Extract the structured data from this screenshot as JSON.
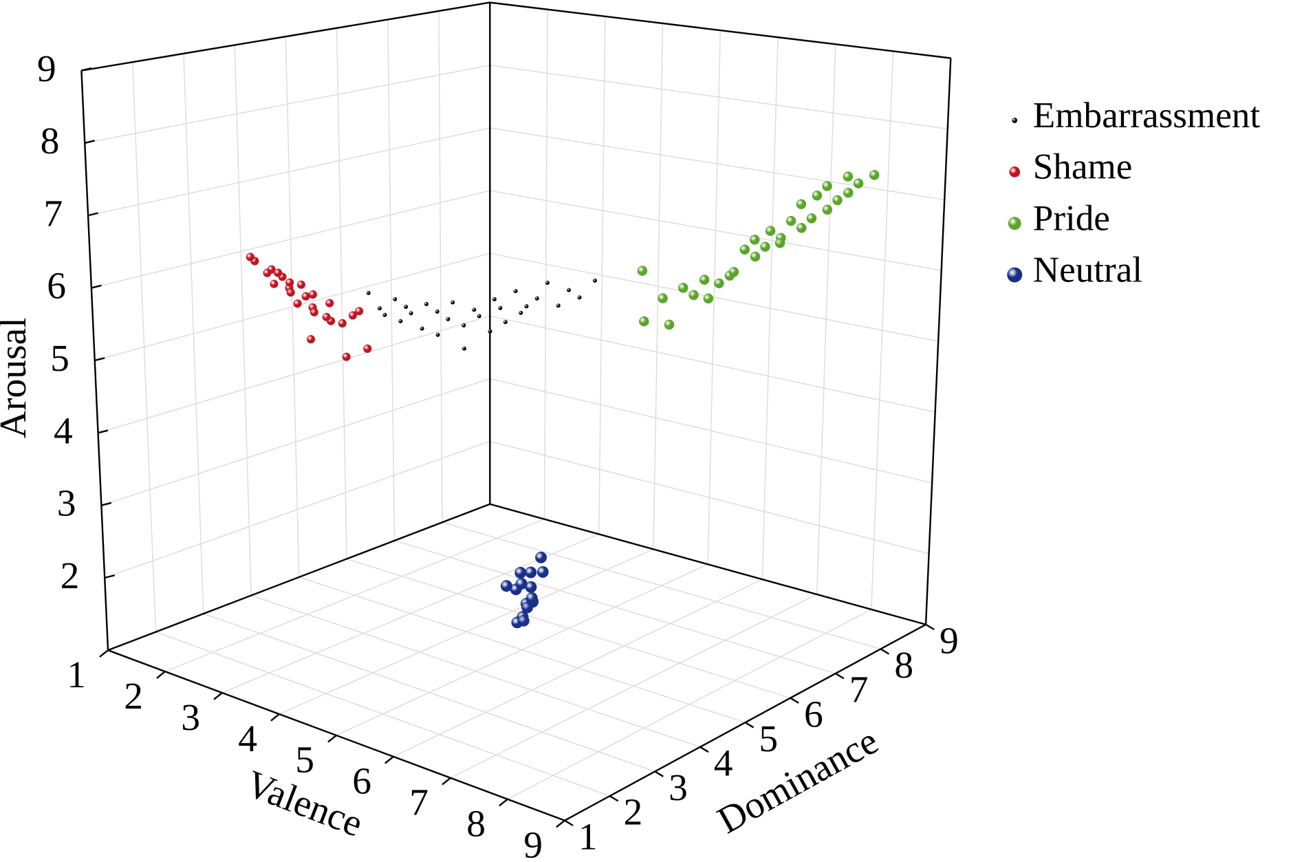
{
  "chart_data": {
    "type": "scatter3d",
    "xlabel": "Valence",
    "ylabel": "Dominance",
    "zlabel": "Arousal",
    "xlim": [
      1,
      9
    ],
    "ylim": [
      1,
      9
    ],
    "zlim": [
      1,
      9
    ],
    "xticks": [
      1,
      2,
      3,
      4,
      5,
      6,
      7,
      8,
      9
    ],
    "yticks": [
      1,
      2,
      3,
      4,
      5,
      6,
      7,
      8,
      9
    ],
    "zticks": [
      2,
      3,
      4,
      5,
      6,
      7,
      8,
      9
    ],
    "grid": true,
    "legend_position": "right",
    "series": [
      {
        "name": "Embarrassment",
        "color": "#000000",
        "marker_size": 2.5,
        "x": [
          4.8,
          4.9,
          4.9,
          5.0,
          5.0,
          5.1,
          5.1,
          5.2,
          5.2,
          5.3,
          5.3,
          5.4,
          5.4,
          5.5,
          5.5,
          5.6,
          5.6,
          5.7,
          5.7,
          5.8,
          5.8,
          5.9,
          5.9,
          6.0,
          6.1,
          6.2,
          6.3,
          6.4,
          6.5,
          6.6
        ],
        "y": [
          2.2,
          2.3,
          2.4,
          2.5,
          2.6,
          2.6,
          2.7,
          2.8,
          2.9,
          3.0,
          3.0,
          3.1,
          3.2,
          3.3,
          3.3,
          3.4,
          3.5,
          3.6,
          3.7,
          3.7,
          3.8,
          3.9,
          4.0,
          4.0,
          4.1,
          4.2,
          4.3,
          4.4,
          4.5,
          4.7
        ],
        "z": [
          6.3,
          6.1,
          6.0,
          6.2,
          5.9,
          6.1,
          6.0,
          5.8,
          6.1,
          6.0,
          5.7,
          5.9,
          6.1,
          5.8,
          5.5,
          6.0,
          5.9,
          5.7,
          6.1,
          6.0,
          5.8,
          6.2,
          5.9,
          6.0,
          6.1,
          6.3,
          6.0,
          6.2,
          6.1,
          6.3
        ]
      },
      {
        "name": "Shame",
        "color": "#c4121f",
        "marker_size": 5,
        "x": [
          3.0,
          3.1,
          3.2,
          3.3,
          3.3,
          3.4,
          3.5,
          3.5,
          3.6,
          3.7,
          3.7,
          3.8,
          3.9,
          3.9,
          4.0,
          4.1,
          4.2,
          4.3,
          4.4,
          4.5,
          4.6,
          4.8,
          4.2,
          4.9,
          5.1
        ],
        "y": [
          2.0,
          1.8,
          2.1,
          1.9,
          2.2,
          2.0,
          1.8,
          2.1,
          2.0,
          1.9,
          2.2,
          2.0,
          1.8,
          2.1,
          2.0,
          1.9,
          2.1,
          2.0,
          1.8,
          2.0,
          2.1,
          2.0,
          1.7,
          1.6,
          1.8
        ],
        "z": [
          6.5,
          6.6,
          6.4,
          6.4,
          6.3,
          6.4,
          6.3,
          6.2,
          6.3,
          6.2,
          6.1,
          6.3,
          6.1,
          6.0,
          6.2,
          6.0,
          6.1,
          5.9,
          6.0,
          5.9,
          6.0,
          6.1,
          5.7,
          5.6,
          5.7
        ]
      },
      {
        "name": "Pride",
        "color": "#5aa62a",
        "marker_size": 6,
        "x": [
          7.0,
          7.2,
          7.1,
          7.3,
          7.2,
          7.3,
          7.4,
          7.3,
          7.4,
          7.5,
          7.4,
          7.5,
          7.6,
          7.5,
          7.6,
          7.6,
          7.7,
          7.6,
          7.7,
          7.8,
          7.7,
          7.8,
          7.8,
          7.9,
          7.8,
          7.9,
          8.0,
          7.9,
          8.0,
          8.1
        ],
        "y": [
          5.2,
          5.0,
          5.5,
          5.4,
          5.8,
          5.9,
          6.0,
          6.2,
          6.3,
          6.4,
          6.6,
          6.7,
          6.8,
          6.9,
          7.0,
          7.1,
          7.2,
          7.3,
          7.4,
          7.5,
          7.6,
          7.7,
          7.8,
          7.9,
          8.0,
          8.1,
          8.2,
          8.3,
          8.4,
          8.6
        ],
        "z": [
          6.4,
          5.8,
          6.0,
          5.7,
          6.1,
          6.0,
          6.2,
          5.9,
          6.1,
          6.2,
          6.2,
          6.5,
          6.4,
          6.6,
          6.5,
          6.7,
          6.6,
          6.5,
          6.8,
          6.7,
          7.0,
          6.8,
          7.1,
          6.9,
          7.2,
          7.0,
          7.1,
          7.3,
          7.2,
          7.3
        ]
      },
      {
        "name": "Neutral",
        "color": "#1a2f8a",
        "marker_size": 7,
        "x": [
          4.9,
          5.0,
          5.1,
          5.0,
          4.9,
          5.2,
          5.1,
          5.0,
          5.3,
          5.1,
          5.0,
          4.9,
          5.2,
          5.1,
          5.0
        ],
        "y": [
          5.0,
          5.1,
          4.9,
          5.2,
          4.8,
          5.0,
          5.3,
          4.9,
          5.1,
          5.0,
          5.2,
          5.1,
          4.8,
          5.1,
          5.0
        ],
        "z": [
          1.8,
          1.6,
          1.5,
          2.0,
          1.9,
          1.7,
          2.2,
          1.4,
          2.1,
          1.6,
          1.8,
          2.0,
          1.5,
          1.7,
          1.9
        ]
      }
    ]
  }
}
